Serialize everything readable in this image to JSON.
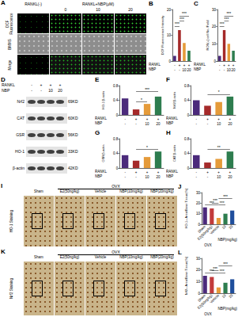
{
  "figure_panels": {
    "A": {
      "panel": "A",
      "column_headers": [
        "RANKL(-)",
        "RANKL+NBP(μM)"
      ],
      "doses": [
        "0",
        "10",
        "20"
      ],
      "rows": [
        "DCF Fluorescence",
        "BMMS",
        "Merge"
      ]
    },
    "D": {
      "panel": "D",
      "row_labels": [
        "RANKL",
        "NBP"
      ],
      "lanes": [
        [
          "-",
          "-"
        ],
        [
          "+",
          "-"
        ],
        [
          "+",
          "10"
        ],
        [
          "+",
          "20"
        ]
      ],
      "bands": [
        {
          "protein": "Nrf2",
          "mw": "69KD"
        },
        {
          "protein": "CAT",
          "mw": "60KD"
        },
        {
          "protein": "GSR",
          "mw": "56KD"
        },
        {
          "protein": "HO-1",
          "mw": "33KD"
        },
        {
          "protein": "β-actin",
          "mw": "42KD"
        }
      ]
    },
    "I": {
      "panel": "I",
      "stain": "HO-1 Staining",
      "group": "OVX",
      "columns": [
        "Sham",
        "E2(50ng/kg)",
        "Vehicle",
        "NBP(10mg/kg)",
        "NBP(20mg/kg)"
      ]
    },
    "K": {
      "panel": "K",
      "stain": "Nrf2 Staining",
      "group": "OVX",
      "columns": [
        "Sham",
        "E2(50ng/kg)",
        "Vehicle",
        "NBP(10mg/kg)",
        "NBP(20mg/kg)"
      ]
    }
  },
  "chart_data": [
    {
      "panel": "B",
      "type": "bar",
      "y_label": "DCF Fluorescence Intensity",
      "row_labels": [
        "RANKL",
        "NBP"
      ],
      "categories": [
        [
          "-",
          "-"
        ],
        [
          "+",
          "-"
        ],
        [
          "+",
          "10"
        ],
        [
          "+",
          "20"
        ]
      ],
      "values": [
        2,
        12,
        7,
        4
      ],
      "colors": [
        "#4b2a7b",
        "#a52a2a",
        "#e59b3a",
        "#2e7d4f"
      ],
      "ylim": [
        0,
        20
      ],
      "yticks": [
        0,
        10,
        20
      ],
      "grid": false,
      "significance": [
        {
          "from": 0,
          "to": 1,
          "label": "***"
        },
        {
          "from": 1,
          "to": 2,
          "label": "***"
        },
        {
          "from": 1,
          "to": 3,
          "label": "***"
        }
      ]
    },
    {
      "panel": "C",
      "type": "bar",
      "y_label": "ROS(+) cell No./Field",
      "row_labels": [
        "RANKL",
        "NBP"
      ],
      "categories": [
        [
          "-",
          "-"
        ],
        [
          "+",
          "-"
        ],
        [
          "+",
          "10"
        ],
        [
          "+",
          "20"
        ]
      ],
      "values": [
        3,
        18,
        10,
        6
      ],
      "colors": [
        "#4b2a7b",
        "#a52a2a",
        "#e59b3a",
        "#2e7d4f"
      ],
      "ylim": [
        0,
        30
      ],
      "yticks": [
        0,
        10,
        20,
        30
      ],
      "grid": false,
      "significance": [
        {
          "from": 0,
          "to": 1,
          "label": "***"
        },
        {
          "from": 1,
          "to": 2,
          "label": "***"
        },
        {
          "from": 1,
          "to": 3,
          "label": "***"
        }
      ]
    },
    {
      "panel": "E",
      "type": "bar",
      "y_label": "HO-1/β-actin",
      "row_labels": [
        "RANKL",
        "NBP"
      ],
      "categories": [
        [
          "-",
          "-"
        ],
        [
          "+",
          "-"
        ],
        [
          "+",
          "10"
        ],
        [
          "+",
          "20"
        ]
      ],
      "values": [
        0.45,
        0.15,
        0.3,
        0.5
      ],
      "colors": [
        "#4b2a7b",
        "#a52a2a",
        "#e59b3a",
        "#2e7d4f"
      ],
      "ylim": [
        0,
        0.8
      ],
      "yticks": [
        0,
        0.4,
        0.8
      ],
      "grid": false,
      "significance": [
        {
          "from": 1,
          "to": 2,
          "label": "*"
        },
        {
          "from": 1,
          "to": 3,
          "label": "***"
        }
      ]
    },
    {
      "panel": "F",
      "type": "bar",
      "y_label": "Nrf2/β-actin",
      "row_labels": [
        "RANKL",
        "NBP"
      ],
      "categories": [
        [
          "-",
          "-"
        ],
        [
          "+",
          "-"
        ],
        [
          "+",
          "10"
        ],
        [
          "+",
          "20"
        ]
      ],
      "values": [
        0.4,
        0.25,
        0.35,
        0.5
      ],
      "colors": [
        "#4b2a7b",
        "#a52a2a",
        "#e59b3a",
        "#2e7d4f"
      ],
      "ylim": [
        0,
        0.8
      ],
      "yticks": [
        0,
        0.4,
        0.8
      ],
      "grid": false,
      "significance": [
        {
          "from": 1,
          "to": 3,
          "label": "*"
        }
      ]
    },
    {
      "panel": "G",
      "type": "bar",
      "y_label": "GSR/β-actin",
      "row_labels": [
        "RANKL",
        "NBP"
      ],
      "categories": [
        [
          "-",
          "-"
        ],
        [
          "+",
          "-"
        ],
        [
          "+",
          "10"
        ],
        [
          "+",
          "20"
        ]
      ],
      "values": [
        0.35,
        0.2,
        0.3,
        0.45
      ],
      "colors": [
        "#4b2a7b",
        "#a52a2a",
        "#e59b3a",
        "#2e7d4f"
      ],
      "ylim": [
        0,
        0.8
      ],
      "yticks": [
        0,
        0.4,
        0.8
      ],
      "grid": false,
      "significance": [
        {
          "from": 1,
          "to": 3,
          "label": "*"
        }
      ]
    },
    {
      "panel": "H",
      "type": "bar",
      "y_label": "CAT/β-actin",
      "row_labels": [
        "RANKL",
        "NBP"
      ],
      "categories": [
        [
          "-",
          "-"
        ],
        [
          "+",
          "-"
        ],
        [
          "+",
          "10"
        ],
        [
          "+",
          "20"
        ]
      ],
      "values": [
        0.35,
        0.15,
        0.25,
        0.45
      ],
      "colors": [
        "#4b2a7b",
        "#a52a2a",
        "#e59b3a",
        "#2e7d4f"
      ],
      "ylim": [
        0,
        0.8
      ],
      "yticks": [
        0,
        0.4,
        0.8
      ],
      "grid": false,
      "significance": [
        {
          "from": 1,
          "to": 3,
          "label": "**"
        }
      ]
    },
    {
      "panel": "J",
      "type": "bar",
      "y_label": "HO-1+ Area/Bone Tissue(%)",
      "group_labels": [
        "OVX",
        "NBP(mg/kg)"
      ],
      "categories": [
        "Sham",
        "E2(50ng/kg)",
        "Vehicle",
        "10",
        "20"
      ],
      "values": [
        16,
        15,
        6,
        10,
        13
      ],
      "colors": [
        "#4b2a7b",
        "#c23b3b",
        "#e59b3a",
        "#2e7d4f",
        "#1f4e9c"
      ],
      "ylim": [
        0,
        30
      ],
      "yticks": [
        0,
        10,
        20,
        30
      ],
      "grid": false,
      "significance": [
        {
          "from": 0,
          "to": 2,
          "label": "***"
        },
        {
          "from": 1,
          "to": 2,
          "label": "***"
        },
        {
          "from": 2,
          "to": 3,
          "label": "***"
        },
        {
          "from": 2,
          "to": 4,
          "label": "***"
        }
      ]
    },
    {
      "panel": "L",
      "type": "bar",
      "y_label": "Nrf2+ Area/Bone Tissue(%)",
      "group_labels": [
        "OVX",
        "NBP(mg/kg)"
      ],
      "categories": [
        "Sham",
        "E2(50ng/kg)",
        "Vehicle",
        "10",
        "20"
      ],
      "values": [
        15,
        14,
        5,
        9,
        12
      ],
      "colors": [
        "#4b2a7b",
        "#c23b3b",
        "#e59b3a",
        "#2e7d4f",
        "#1f4e9c"
      ],
      "ylim": [
        0,
        30
      ],
      "yticks": [
        0,
        10,
        20,
        30
      ],
      "grid": false,
      "significance": [
        {
          "from": 0,
          "to": 2,
          "label": "***"
        },
        {
          "from": 1,
          "to": 2,
          "label": "***"
        },
        {
          "from": 2,
          "to": 3,
          "label": "***"
        },
        {
          "from": 2,
          "to": 4,
          "label": "***"
        }
      ]
    }
  ]
}
